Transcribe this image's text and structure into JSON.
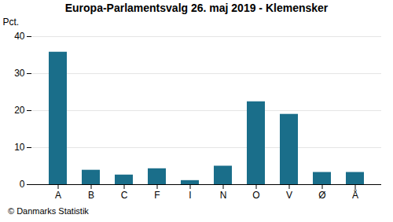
{
  "chart_data": {
    "type": "bar",
    "title": "Europa-Parlamentsvalg 26. maj 2019 - Klemensker",
    "categories": [
      "A",
      "B",
      "C",
      "F",
      "I",
      "N",
      "O",
      "V",
      "Ø",
      "Å"
    ],
    "values": [
      35.8,
      3.9,
      2.6,
      4.3,
      1.1,
      5.0,
      22.4,
      19.0,
      3.3,
      3.3
    ],
    "color": "#1a6e8a",
    "ylabel": "Pct.",
    "ylim": [
      0,
      40
    ],
    "yticks": [
      0,
      10,
      20,
      30,
      40
    ],
    "grid": true,
    "footer": "© Danmarks Statistik"
  }
}
